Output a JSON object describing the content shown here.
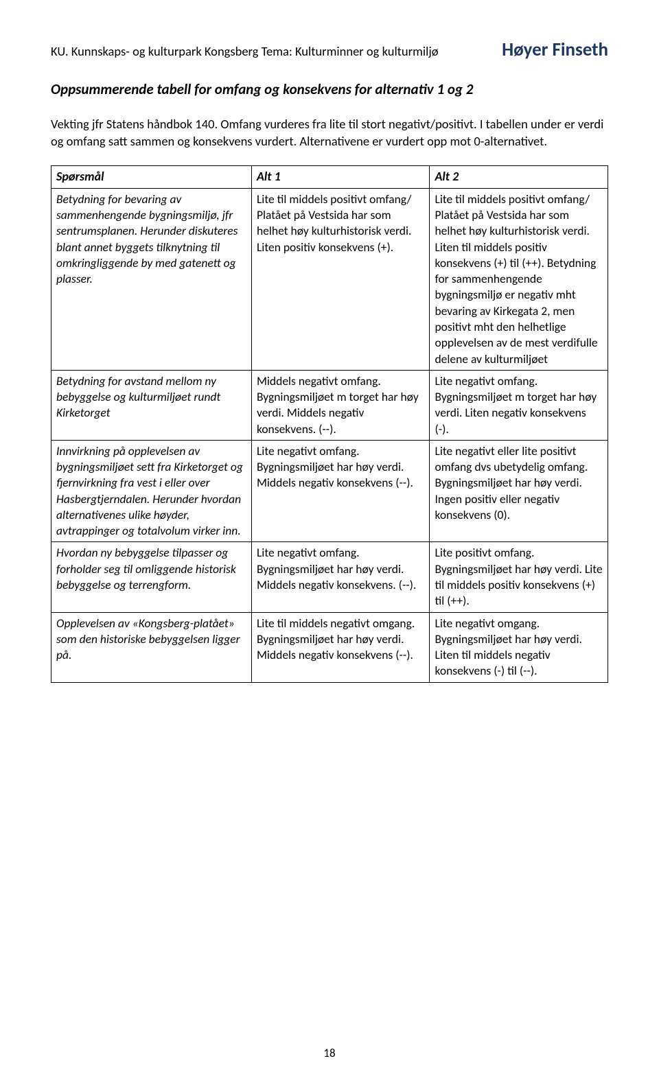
{
  "header": {
    "left": "KU. Kunnskaps- og kulturpark Kongsberg Tema: Kulturminner og kulturmiljø",
    "right": "Høyer Finseth"
  },
  "section_title": "Oppsummerende tabell for omfang og konsekvens for alternativ 1 og 2",
  "intro": "Vekting jfr Statens håndbok 140. Omfang vurderes fra lite til stort negativt/positivt. I tabellen under er verdi og omfang satt sammen og konsekvens vurdert. Alternativene er vurdert opp mot 0-alternativet.",
  "table": {
    "columns": [
      "Spørsmål",
      "Alt 1",
      "Alt 2"
    ],
    "col_widths_pct": [
      36,
      32,
      32
    ],
    "border_color": "#000000",
    "rows": [
      {
        "q": "Betydning for bevaring av sammenhengende bygningsmiljø, jfr sentrumsplanen. Herunder diskuteres blant annet byggets tilknytning til omkringliggende by med gatenett og plasser.",
        "a1": "Lite til middels positivt omfang/ Platået på Vestsida har som helhet høy kulturhistorisk verdi. Liten positiv konsekvens (+).",
        "a2": "Lite til middels positivt omfang/ Platået på Vestsida har som helhet høy kulturhistorisk verdi. Liten til middels positiv konsekvens (+) til (++). Betydning for sammenhengende bygningsmiljø er negativ mht bevaring av Kirkegata 2, men positivt mht den helhetlige opplevelsen av de mest verdifulle delene av kulturmiljøet"
      },
      {
        "q": "Betydning for avstand mellom ny bebyggelse og kulturmiljøet rundt Kirketorget",
        "a1": "Middels negativt omfang. Bygningsmiljøet m torget har høy verdi. Middels negativ konsekvens. (--).",
        "a2": "Lite negativt omfang. Bygningsmiljøet m torget har høy verdi. Liten negativ konsekvens (-)."
      },
      {
        "q": "Innvirkning på opplevelsen av bygningsmiljøet sett fra Kirketorget og fjernvirkning fra vest i eller over Hasbergtjerndalen. Herunder hvordan alternativenes ulike høyder, avtrappinger og totalvolum virker inn.",
        "a1": "Lite negativt omfang. Bygningsmiljøet har høy verdi. Middels negativ konsekvens (--).",
        "a2": "Lite negativt eller lite positivt omfang dvs ubetydelig omfang. Bygningsmiljøet har høy verdi. Ingen positiv eller negativ konsekvens (0)."
      },
      {
        "q": "Hvordan ny bebyggelse tilpasser og forholder seg til omliggende historisk bebyggelse og terrengform.",
        "a1": "Lite negativt omfang. Bygningsmiljøet har høy verdi. Middels negativ konsekvens. (--).",
        "a2": "Lite positivt omfang. Bygningsmiljøet har høy verdi. Lite til middels positiv konsekvens (+) til (++)."
      },
      {
        "q": "Opplevelsen av «Kongsberg-platået» som den historiske bebyggelsen ligger på.",
        "a1": "Lite til middels negativt omgang. Bygningsmiljøet har høy verdi. Middels negativ konsekvens (--).",
        "a2": "Lite negativt omgang. Bygningsmiljøet har høy verdi. Liten til middels negativ konsekvens (-) til (--)."
      }
    ]
  },
  "page_number": "18",
  "colors": {
    "text": "#000000",
    "brand": "#1f3763",
    "background": "#ffffff"
  },
  "typography": {
    "body_font": "Calibri, Arial, sans-serif",
    "header_left_size_pt": 14,
    "header_right_size_pt": 20,
    "section_title_size_pt": 16,
    "body_size_pt": 14,
    "table_size_pt": 13
  }
}
